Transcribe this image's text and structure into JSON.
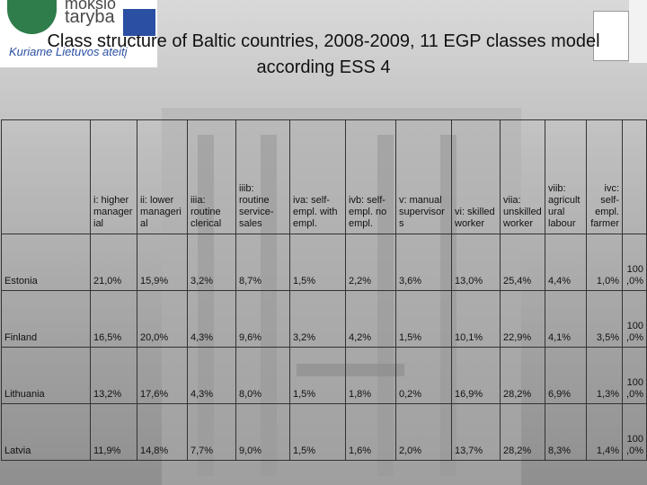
{
  "header": {
    "title": "Class structure of Baltic countries, 2008-2009, 11 EGP classes model according ESS 4",
    "logo_top": "mokslo",
    "logo_bottom": "taryba",
    "slogan": "Kuriame Lietuvos ateitį"
  },
  "table": {
    "headers": [
      "i: higher managerial",
      "ii: lower managerial",
      "iiia: routine clerical",
      "iiib: routine service-sales",
      "iva: self-empl. with empl.",
      "ivb: self-empl. no empl.",
      "v: manual supervisors",
      "vi: skilled worker",
      "viia: unskilled worker",
      "viib: agricultural labour",
      "ivc: self-empl. farmer"
    ],
    "rows": [
      [
        "Estonia",
        "21,0%",
        "15,9%",
        "3,2%",
        "8,7%",
        "1,5%",
        "2,2%",
        "3,6%",
        "13,0%",
        "25,4%",
        "4,4%",
        "1,0%",
        "100,0%"
      ],
      [
        "Finland",
        "16,5%",
        "20,0%",
        "4,3%",
        "9,6%",
        "3,2%",
        "4,2%",
        "1,5%",
        "10,1%",
        "22,9%",
        "4,1%",
        "3,5%",
        "100,0%"
      ],
      [
        "Lithuania",
        "13,2%",
        "17,6%",
        "4,3%",
        "8,0%",
        "1,5%",
        "1,8%",
        "0,2%",
        "16,9%",
        "28,2%",
        "6,9%",
        "1,3%",
        "100,0%"
      ],
      [
        "Latvia",
        "11,9%",
        "14,8%",
        "7,7%",
        "9,0%",
        "1,5%",
        "1,6%",
        "2,0%",
        "13,7%",
        "28,2%",
        "8,3%",
        "1,4%",
        "100,0%"
      ]
    ]
  }
}
